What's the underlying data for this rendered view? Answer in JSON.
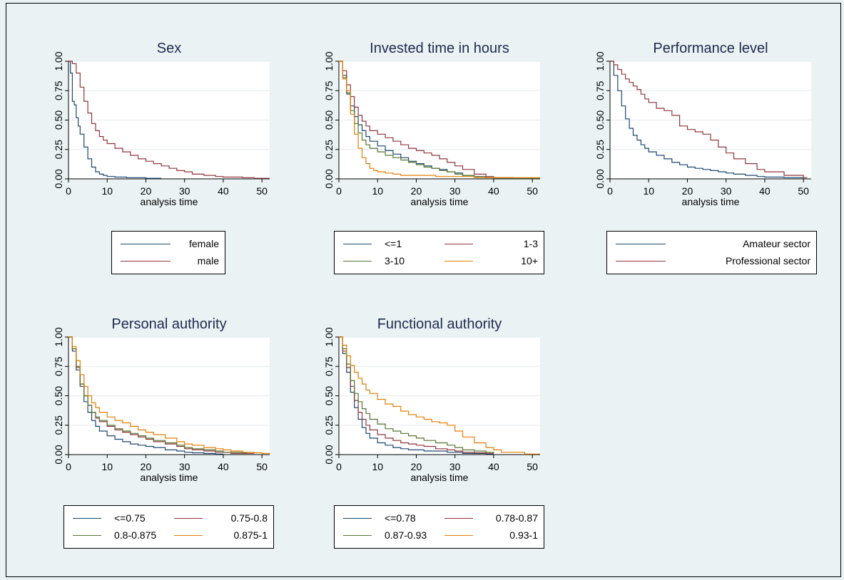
{
  "colors": [
    "#1a476f",
    "#90353b",
    "#55752f",
    "#e37e00"
  ],
  "chart_data": [
    {
      "type": "line",
      "title": "Sex",
      "xlabel": "analysis time",
      "ylabel": "",
      "xlim": [
        0,
        52
      ],
      "ylim": [
        0,
        1
      ],
      "xticks": [
        "0",
        "10",
        "20",
        "30",
        "40",
        "50"
      ],
      "yticks": [
        "0.00",
        "0.25",
        "0.50",
        "0.75",
        "1.00"
      ],
      "grid": true,
      "legend_position": "bottom",
      "legend_columns": 1,
      "series": [
        {
          "name": "female",
          "x": [
            0,
            0.5,
            1,
            1.5,
            2,
            2.5,
            3,
            4,
            5,
            6,
            7,
            8,
            9,
            10,
            12,
            15,
            20,
            24
          ],
          "y": [
            1,
            0.9,
            0.66,
            0.63,
            0.52,
            0.45,
            0.38,
            0.27,
            0.17,
            0.1,
            0.06,
            0.04,
            0.03,
            0.02,
            0.015,
            0.01,
            0.005,
            0.005
          ]
        },
        {
          "name": "male",
          "x": [
            0,
            1,
            2,
            3,
            4,
            5,
            6,
            7,
            8,
            9,
            10,
            12,
            14,
            16,
            18,
            20,
            22,
            24,
            26,
            28,
            30,
            32,
            35,
            38,
            40,
            45,
            48,
            52
          ],
          "y": [
            1,
            0.98,
            0.9,
            0.78,
            0.66,
            0.56,
            0.47,
            0.41,
            0.36,
            0.33,
            0.3,
            0.26,
            0.23,
            0.2,
            0.17,
            0.15,
            0.13,
            0.11,
            0.09,
            0.07,
            0.06,
            0.04,
            0.03,
            0.02,
            0.015,
            0.01,
            0.005,
            0.005
          ]
        }
      ]
    },
    {
      "type": "line",
      "title": "Invested time in hours",
      "xlabel": "analysis time",
      "ylabel": "",
      "xlim": [
        0,
        52
      ],
      "ylim": [
        0,
        1
      ],
      "xticks": [
        "0",
        "10",
        "20",
        "30",
        "40",
        "50"
      ],
      "yticks": [
        "0.00",
        "0.25",
        "0.50",
        "0.75",
        "1.00"
      ],
      "grid": true,
      "legend_position": "bottom",
      "legend_columns": 2,
      "series": [
        {
          "name": "<=1",
          "x": [
            0,
            1,
            2,
            3,
            4,
            5,
            6,
            7,
            8,
            10,
            12,
            14,
            16,
            18,
            20,
            22,
            24,
            26,
            28,
            30,
            32,
            35,
            38,
            40
          ],
          "y": [
            1,
            0.88,
            0.73,
            0.62,
            0.53,
            0.46,
            0.41,
            0.36,
            0.32,
            0.28,
            0.24,
            0.21,
            0.18,
            0.15,
            0.13,
            0.11,
            0.09,
            0.08,
            0.06,
            0.05,
            0.03,
            0.02,
            0.01,
            0.01
          ]
        },
        {
          "name": "1-3",
          "x": [
            0,
            1,
            2,
            3,
            4,
            5,
            6,
            7,
            8,
            10,
            12,
            14,
            16,
            18,
            20,
            22,
            24,
            26,
            28,
            30,
            32,
            35,
            38,
            40,
            45
          ],
          "y": [
            1,
            0.92,
            0.8,
            0.7,
            0.61,
            0.54,
            0.49,
            0.45,
            0.41,
            0.38,
            0.35,
            0.32,
            0.29,
            0.26,
            0.24,
            0.22,
            0.2,
            0.17,
            0.14,
            0.11,
            0.08,
            0.04,
            0.02,
            0.01,
            0.005
          ]
        },
        {
          "name": "3-10",
          "x": [
            0,
            1,
            2,
            3,
            4,
            5,
            6,
            7,
            8,
            10,
            12,
            14,
            16,
            18,
            20,
            22,
            24,
            26,
            28,
            30,
            32,
            35,
            38,
            40,
            45,
            52
          ],
          "y": [
            1,
            0.86,
            0.72,
            0.58,
            0.47,
            0.39,
            0.33,
            0.29,
            0.26,
            0.23,
            0.2,
            0.18,
            0.16,
            0.14,
            0.12,
            0.1,
            0.09,
            0.07,
            0.06,
            0.04,
            0.03,
            0.02,
            0.01,
            0.005,
            0.005,
            0.005
          ]
        },
        {
          "name": "10+",
          "x": [
            0,
            1,
            2,
            3,
            4,
            5,
            6,
            7,
            8,
            9,
            10,
            12,
            14,
            16,
            18,
            20,
            25,
            30,
            35,
            40,
            52
          ],
          "y": [
            1,
            0.85,
            0.75,
            0.55,
            0.38,
            0.26,
            0.18,
            0.13,
            0.09,
            0.07,
            0.06,
            0.05,
            0.04,
            0.03,
            0.03,
            0.03,
            0.02,
            0.02,
            0.01,
            0.01,
            0.01
          ]
        }
      ]
    },
    {
      "type": "line",
      "title": "Performance level",
      "xlabel": "analysis time",
      "ylabel": "",
      "xlim": [
        0,
        52
      ],
      "ylim": [
        0,
        1
      ],
      "xticks": [
        "0",
        "10",
        "20",
        "30",
        "40",
        "50"
      ],
      "yticks": [
        "0.00",
        "0.25",
        "0.50",
        "0.75",
        "1.00"
      ],
      "grid": true,
      "legend_position": "bottom",
      "legend_columns": 1,
      "series": [
        {
          "name": "Amateur sector",
          "x": [
            0,
            1,
            2,
            3,
            4,
            5,
            6,
            7,
            8,
            9,
            10,
            12,
            14,
            16,
            18,
            20,
            22,
            24,
            26,
            28,
            30,
            32,
            35,
            38,
            40,
            45,
            50
          ],
          "y": [
            1,
            0.88,
            0.75,
            0.62,
            0.51,
            0.43,
            0.37,
            0.33,
            0.29,
            0.26,
            0.23,
            0.2,
            0.17,
            0.14,
            0.12,
            0.1,
            0.09,
            0.08,
            0.07,
            0.06,
            0.05,
            0.04,
            0.03,
            0.02,
            0.015,
            0.01,
            0.005
          ]
        },
        {
          "name": "Professional sector",
          "x": [
            0,
            1,
            2,
            3,
            4,
            5,
            6,
            7,
            8,
            9,
            10,
            12,
            14,
            16,
            18,
            20,
            22,
            24,
            26,
            28,
            30,
            32,
            35,
            38,
            40,
            45,
            50,
            51
          ],
          "y": [
            1,
            0.97,
            0.93,
            0.89,
            0.85,
            0.82,
            0.79,
            0.76,
            0.72,
            0.68,
            0.65,
            0.6,
            0.58,
            0.54,
            0.45,
            0.42,
            0.4,
            0.38,
            0.33,
            0.27,
            0.22,
            0.17,
            0.13,
            0.08,
            0.06,
            0.03,
            0.01,
            0.01
          ]
        }
      ]
    },
    {
      "type": "line",
      "title": "Personal authority",
      "xlabel": "analysis time",
      "ylabel": "",
      "xlim": [
        0,
        52
      ],
      "ylim": [
        0,
        1
      ],
      "xticks": [
        "0",
        "10",
        "20",
        "30",
        "40",
        "50"
      ],
      "yticks": [
        "0.00",
        "0.25",
        "0.50",
        "0.75",
        "1.00"
      ],
      "grid": true,
      "legend_position": "bottom",
      "legend_columns": 2,
      "series": [
        {
          "name": "<=0.75",
          "x": [
            0,
            1,
            2,
            3,
            4,
            5,
            6,
            7,
            8,
            10,
            12,
            14,
            16,
            18,
            20,
            22,
            25,
            28,
            30,
            32,
            35,
            38,
            40
          ],
          "y": [
            1,
            0.88,
            0.72,
            0.58,
            0.45,
            0.36,
            0.29,
            0.24,
            0.2,
            0.16,
            0.13,
            0.11,
            0.09,
            0.08,
            0.07,
            0.06,
            0.04,
            0.03,
            0.02,
            0.015,
            0.01,
            0.005,
            0.005
          ]
        },
        {
          "name": "0.75-0.8",
          "x": [
            0,
            1,
            2,
            3,
            4,
            5,
            6,
            7,
            8,
            10,
            12,
            14,
            16,
            18,
            20,
            22,
            25,
            28,
            30,
            32,
            35,
            38,
            40,
            42,
            45,
            48
          ],
          "y": [
            1,
            0.9,
            0.75,
            0.6,
            0.5,
            0.42,
            0.36,
            0.31,
            0.28,
            0.24,
            0.21,
            0.19,
            0.17,
            0.15,
            0.13,
            0.11,
            0.09,
            0.07,
            0.05,
            0.04,
            0.03,
            0.02,
            0.02,
            0.01,
            0.01,
            0.01
          ]
        },
        {
          "name": "0.8-0.875",
          "x": [
            0,
            1,
            2,
            3,
            4,
            5,
            6,
            7,
            8,
            10,
            12,
            14,
            16,
            18,
            20,
            22,
            25,
            28,
            30,
            32,
            35,
            38,
            40,
            42,
            45,
            46
          ],
          "y": [
            1,
            0.9,
            0.74,
            0.6,
            0.5,
            0.42,
            0.36,
            0.32,
            0.29,
            0.25,
            0.22,
            0.2,
            0.18,
            0.16,
            0.14,
            0.12,
            0.1,
            0.08,
            0.06,
            0.05,
            0.04,
            0.03,
            0.02,
            0.02,
            0.015,
            0.01
          ]
        },
        {
          "name": "0.875-1",
          "x": [
            0,
            1,
            2,
            3,
            4,
            5,
            6,
            7,
            8,
            10,
            12,
            14,
            16,
            18,
            20,
            22,
            25,
            28,
            30,
            32,
            35,
            38,
            40,
            42,
            45,
            48,
            50,
            52
          ],
          "y": [
            1,
            0.92,
            0.8,
            0.68,
            0.58,
            0.5,
            0.44,
            0.4,
            0.36,
            0.32,
            0.29,
            0.27,
            0.24,
            0.21,
            0.19,
            0.17,
            0.14,
            0.11,
            0.09,
            0.08,
            0.06,
            0.05,
            0.04,
            0.03,
            0.02,
            0.015,
            0.01,
            0.005
          ]
        }
      ]
    },
    {
      "type": "line",
      "title": "Functional authority",
      "xlabel": "analysis time",
      "ylabel": "",
      "xlim": [
        0,
        52
      ],
      "ylim": [
        0,
        1
      ],
      "xticks": [
        "0",
        "10",
        "20",
        "30",
        "40",
        "50"
      ],
      "yticks": [
        "0.00",
        "0.25",
        "0.50",
        "0.75",
        "1.00"
      ],
      "grid": true,
      "legend_position": "bottom",
      "legend_columns": 2,
      "series": [
        {
          "name": "<=0.78",
          "x": [
            0,
            1,
            2,
            3,
            4,
            5,
            6,
            7,
            8,
            10,
            12,
            14,
            16,
            18,
            20,
            22,
            25,
            28,
            30,
            32,
            35,
            38,
            40
          ],
          "y": [
            1,
            0.86,
            0.7,
            0.53,
            0.4,
            0.3,
            0.23,
            0.18,
            0.14,
            0.1,
            0.08,
            0.06,
            0.05,
            0.04,
            0.04,
            0.03,
            0.03,
            0.02,
            0.02,
            0.01,
            0.01,
            0.005,
            0.005
          ]
        },
        {
          "name": "0.78-0.87",
          "x": [
            0,
            1,
            2,
            3,
            4,
            5,
            6,
            7,
            8,
            10,
            12,
            14,
            16,
            18,
            20,
            22,
            25,
            28,
            30,
            32,
            35,
            38,
            40
          ],
          "y": [
            1,
            0.88,
            0.74,
            0.58,
            0.46,
            0.36,
            0.3,
            0.25,
            0.21,
            0.17,
            0.14,
            0.12,
            0.1,
            0.09,
            0.08,
            0.07,
            0.05,
            0.04,
            0.03,
            0.02,
            0.015,
            0.01,
            0.01
          ]
        },
        {
          "name": "0.87-0.93",
          "x": [
            0,
            1,
            2,
            3,
            4,
            5,
            6,
            7,
            8,
            10,
            12,
            14,
            16,
            18,
            20,
            22,
            25,
            28,
            30,
            32,
            35,
            38,
            40
          ],
          "y": [
            1,
            0.9,
            0.77,
            0.63,
            0.52,
            0.45,
            0.39,
            0.35,
            0.3,
            0.26,
            0.22,
            0.2,
            0.18,
            0.16,
            0.14,
            0.12,
            0.1,
            0.08,
            0.06,
            0.04,
            0.03,
            0.02,
            0.01
          ]
        },
        {
          "name": "0.93-1",
          "x": [
            0,
            1,
            2,
            3,
            4,
            5,
            6,
            7,
            8,
            10,
            12,
            14,
            16,
            18,
            20,
            22,
            24,
            26,
            28,
            30,
            32,
            35,
            38,
            40,
            42,
            45,
            48,
            52
          ],
          "y": [
            1,
            0.93,
            0.84,
            0.76,
            0.7,
            0.65,
            0.6,
            0.55,
            0.52,
            0.47,
            0.43,
            0.41,
            0.37,
            0.34,
            0.32,
            0.3,
            0.28,
            0.27,
            0.25,
            0.2,
            0.15,
            0.1,
            0.06,
            0.04,
            0.02,
            0.02,
            0.005,
            0.005
          ]
        }
      ]
    }
  ]
}
